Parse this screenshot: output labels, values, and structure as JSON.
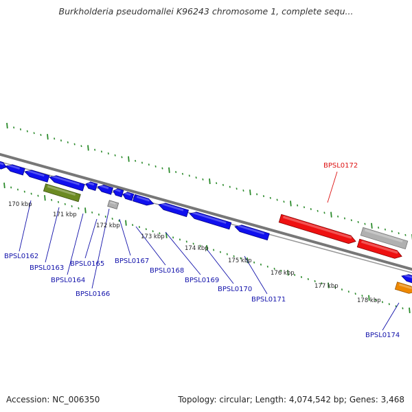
{
  "title": "Burkholderia pseudomallei K96243 chromosome 1, complete sequ...",
  "footer": {
    "accession": "Accession: NC_006350",
    "summary": "Topology: circular; Length: 4,074,542 bp; Genes: 3,468"
  },
  "colors": {
    "forward_gene": "#1010ee",
    "highlight_gene": "#ee1111",
    "pseudo_gene": "#b0b0b0",
    "green_gene": "#6b8a22",
    "orange_gene": "#ee8800",
    "backbone": "#777777",
    "tick": "#2a8a2a",
    "label_normal": "#1111aa",
    "label_highlight": "#dd1111"
  },
  "scale_labels": [
    "170 kbp",
    "171 kbp",
    "172 kbp",
    "173 kbp",
    "174 kbp",
    "175 kbp",
    "176 kbp",
    "177 kbp",
    "178 kbp"
  ],
  "genes": [
    {
      "name": "BPSL0162",
      "type": "forward"
    },
    {
      "name": "BPSL0163",
      "type": "forward"
    },
    {
      "name": "BPSL0164",
      "type": "green"
    },
    {
      "name": "BPSL0165",
      "type": "forward"
    },
    {
      "name": "BPSL0166",
      "type": "pseudo"
    },
    {
      "name": "BPSL0167",
      "type": "forward"
    },
    {
      "name": "BPSL0168",
      "type": "forward"
    },
    {
      "name": "BPSL0169",
      "type": "forward"
    },
    {
      "name": "BPSL0170",
      "type": "forward"
    },
    {
      "name": "BPSL0171",
      "type": "forward"
    },
    {
      "name": "BPSL0172",
      "type": "highlight"
    },
    {
      "name": "BPSL0174",
      "type": "orange"
    }
  ]
}
